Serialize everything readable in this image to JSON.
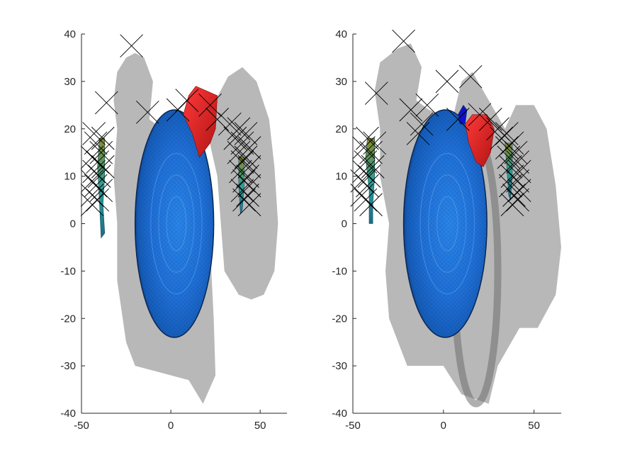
{
  "chart_data": [
    {
      "type": "scatter",
      "title": "",
      "xlabel": "",
      "ylabel": "",
      "xlim": [
        -50,
        65
      ],
      "ylim": [
        -40,
        40
      ],
      "xticks": [
        -50,
        0,
        50
      ],
      "yticks": [
        -40,
        -30,
        -20,
        -10,
        0,
        10,
        20,
        30,
        40
      ],
      "xtick_labels": [
        "-50",
        "0",
        "50"
      ],
      "ytick_labels": [
        "-40",
        "-30",
        "-20",
        "-10",
        "0",
        "10",
        "20",
        "30",
        "40"
      ],
      "colors": {
        "blue_surface": "#1f6fd6",
        "red_surface": "#d81e1e",
        "gray_surface": "#8c8c8c",
        "teal_surface": "#2aa198",
        "marker": "#000000"
      },
      "surfaces": [
        {
          "name": "gray-outer-shell",
          "color": "gray",
          "outline": [
            [
              -20,
              36
            ],
            [
              -15,
              35
            ],
            [
              -10,
              30
            ],
            [
              -12,
              22
            ],
            [
              -5,
              20
            ],
            [
              5,
              18
            ],
            [
              15,
              10
            ],
            [
              20,
              5
            ],
            [
              22,
              -5
            ],
            [
              24,
              -20
            ],
            [
              25,
              -32
            ],
            [
              18,
              -38
            ],
            [
              10,
              -33
            ],
            [
              0,
              -32
            ],
            [
              -10,
              -31
            ],
            [
              -20,
              -30
            ],
            [
              -25,
              -25
            ],
            [
              -30,
              -12
            ],
            [
              -30,
              0
            ],
            [
              -32,
              10
            ],
            [
              -30,
              20
            ],
            [
              -32,
              26
            ],
            [
              -30,
              32
            ],
            [
              -25,
              35
            ]
          ]
        },
        {
          "name": "gray-right-lobe",
          "color": "gray",
          "outline": [
            [
              20,
              20
            ],
            [
              25,
              26
            ],
            [
              32,
              31
            ],
            [
              40,
              33
            ],
            [
              48,
              30
            ],
            [
              55,
              22
            ],
            [
              58,
              12
            ],
            [
              60,
              0
            ],
            [
              58,
              -10
            ],
            [
              52,
              -15
            ],
            [
              45,
              -16
            ],
            [
              38,
              -15
            ],
            [
              30,
              -10
            ],
            [
              28,
              0
            ],
            [
              26,
              10
            ]
          ]
        },
        {
          "name": "blue-ellipse",
          "color": "blue",
          "center": [
            2,
            0
          ],
          "radius": [
            22,
            24
          ]
        },
        {
          "name": "red-patch",
          "color": "red",
          "outline": [
            [
              7,
              23
            ],
            [
              10,
              27
            ],
            [
              14,
              29
            ],
            [
              20,
              28
            ],
            [
              26,
              27
            ],
            [
              25,
              20
            ],
            [
              22,
              17
            ],
            [
              16,
              14
            ],
            [
              12,
              19
            ]
          ]
        },
        {
          "name": "teal-strip-left",
          "color": "teal",
          "outline": [
            [
              -40,
              18
            ],
            [
              -37,
              18
            ],
            [
              -37,
              10
            ],
            [
              -38,
              4
            ],
            [
              -37,
              -2
            ],
            [
              -39,
              -3
            ],
            [
              -40,
              5
            ],
            [
              -41,
              12
            ]
          ]
        },
        {
          "name": "teal-strip-right",
          "color": "teal",
          "outline": [
            [
              38,
              14
            ],
            [
              41,
              14
            ],
            [
              41,
              8
            ],
            [
              40,
              3
            ],
            [
              39,
              2
            ],
            [
              38,
              8
            ]
          ]
        }
      ],
      "markers": [
        [
          -22,
          37.5
        ],
        [
          -36,
          25.5
        ],
        [
          -13,
          23.5
        ],
        [
          -43,
          19
        ],
        [
          -38,
          18
        ],
        [
          -42,
          17
        ],
        [
          -39,
          15
        ],
        [
          -44,
          14
        ],
        [
          -41,
          13
        ],
        [
          -38,
          12
        ],
        [
          -43,
          11
        ],
        [
          -40,
          10
        ],
        [
          -44,
          9
        ],
        [
          -42,
          8
        ],
        [
          -39,
          7
        ],
        [
          -44,
          6
        ],
        [
          -41,
          5
        ],
        [
          -44,
          4
        ],
        [
          4,
          24
        ],
        [
          9,
          26
        ],
        [
          22,
          25
        ],
        [
          26,
          22
        ],
        [
          33,
          21
        ],
        [
          38,
          20
        ],
        [
          42,
          19
        ],
        [
          36,
          18
        ],
        [
          40,
          17
        ],
        [
          44,
          16
        ],
        [
          38,
          15
        ],
        [
          42,
          14
        ],
        [
          40,
          13
        ],
        [
          44,
          12
        ],
        [
          39,
          11
        ],
        [
          43,
          10
        ],
        [
          41,
          9
        ],
        [
          44,
          8
        ],
        [
          40,
          7
        ],
        [
          43,
          6
        ],
        [
          41,
          5
        ],
        [
          44,
          4
        ]
      ]
    },
    {
      "type": "scatter",
      "title": "",
      "xlabel": "",
      "ylabel": "",
      "xlim": [
        -50,
        65
      ],
      "ylim": [
        -40,
        40
      ],
      "xticks": [
        -50,
        0,
        50
      ],
      "yticks": [
        -40,
        -30,
        -20,
        -10,
        0,
        10,
        20,
        30,
        40
      ],
      "xtick_labels": [
        "-50",
        "0",
        "50"
      ],
      "ytick_labels": [
        "-40",
        "-30",
        "-20",
        "-10",
        "0",
        "10",
        "20",
        "30",
        "40"
      ],
      "colors": {
        "blue_surface": "#1f6fd6",
        "red_surface": "#d81e1e",
        "dark_blue_surface": "#1010c8",
        "gray_surface": "#8c8c8c",
        "teal_surface": "#2aa198",
        "marker": "#000000"
      },
      "surfaces": [
        {
          "name": "gray-outer-shell",
          "color": "gray",
          "outline": [
            [
              -25,
              37
            ],
            [
              -18,
              38
            ],
            [
              -12,
              33
            ],
            [
              -15,
              26
            ],
            [
              -8,
              24
            ],
            [
              5,
              22
            ],
            [
              10,
              30
            ],
            [
              16,
              32
            ],
            [
              22,
              28
            ],
            [
              28,
              24
            ],
            [
              34,
              20
            ],
            [
              40,
              25
            ],
            [
              50,
              25
            ],
            [
              57,
              20
            ],
            [
              62,
              8
            ],
            [
              65,
              -5
            ],
            [
              62,
              -15
            ],
            [
              52,
              -22
            ],
            [
              42,
              -22
            ],
            [
              30,
              -30
            ],
            [
              25,
              -38
            ],
            [
              10,
              -36
            ],
            [
              0,
              -30
            ],
            [
              -20,
              -30
            ],
            [
              -30,
              -20
            ],
            [
              -32,
              -10
            ],
            [
              -30,
              0
            ],
            [
              -35,
              10
            ],
            [
              -35,
              20
            ],
            [
              -38,
              28
            ],
            [
              -35,
              34
            ]
          ]
        },
        {
          "name": "gray-ring",
          "color": "gray",
          "center": [
            18,
            -10
          ],
          "radius": [
            12,
            28
          ]
        },
        {
          "name": "blue-ellipse",
          "color": "blue",
          "center": [
            1,
            0
          ],
          "radius": [
            23,
            24
          ]
        },
        {
          "name": "red-patch",
          "color": "red",
          "outline": [
            [
              12,
              21
            ],
            [
              16,
              23
            ],
            [
              24,
              23
            ],
            [
              28,
              20
            ],
            [
              26,
              15
            ],
            [
              22,
              12
            ],
            [
              18,
              13
            ],
            [
              14,
              17
            ]
          ]
        },
        {
          "name": "dark-blue-patch",
          "color": "dark_blue",
          "outline": [
            [
              8,
              23
            ],
            [
              11,
              25
            ],
            [
              13,
              24
            ],
            [
              12,
              21
            ],
            [
              9,
              21
            ]
          ]
        },
        {
          "name": "teal-strip-left",
          "color": "teal",
          "outline": [
            [
              -42,
              18
            ],
            [
              -38,
              18
            ],
            [
              -38,
              10
            ],
            [
              -39,
              4
            ],
            [
              -39,
              0
            ],
            [
              -41,
              0
            ],
            [
              -41,
              7
            ],
            [
              -43,
              14
            ]
          ]
        },
        {
          "name": "teal-strip-right",
          "color": "teal",
          "outline": [
            [
              34,
              17
            ],
            [
              38,
              17
            ],
            [
              38,
              10
            ],
            [
              37,
              5
            ],
            [
              36,
              6
            ],
            [
              35,
              12
            ]
          ]
        }
      ],
      "markers": [
        [
          -22,
          38.5
        ],
        [
          -37,
          27.5
        ],
        [
          -18,
          24
        ],
        [
          -9,
          25
        ],
        [
          2,
          30
        ],
        [
          15,
          31
        ],
        [
          -12,
          21
        ],
        [
          -14,
          19
        ],
        [
          -42,
          18
        ],
        [
          -38,
          17
        ],
        [
          -44,
          16
        ],
        [
          -40,
          15
        ],
        [
          -43,
          13
        ],
        [
          -39,
          12
        ],
        [
          -44,
          11
        ],
        [
          -41,
          10
        ],
        [
          -45,
          9
        ],
        [
          -42,
          8
        ],
        [
          -45,
          6
        ],
        [
          -43,
          5
        ],
        [
          -40,
          4
        ],
        [
          8,
          22
        ],
        [
          20,
          23
        ],
        [
          26,
          22
        ],
        [
          30,
          20
        ],
        [
          35,
          19
        ],
        [
          32,
          18
        ],
        [
          38,
          17
        ],
        [
          35,
          16
        ],
        [
          40,
          15
        ],
        [
          36,
          14
        ],
        [
          41,
          13
        ],
        [
          37,
          12
        ],
        [
          42,
          11
        ],
        [
          38,
          10
        ],
        [
          41,
          9
        ],
        [
          37,
          8
        ],
        [
          42,
          7
        ],
        [
          39,
          6
        ],
        [
          41,
          5
        ],
        [
          38,
          4
        ]
      ]
    }
  ]
}
